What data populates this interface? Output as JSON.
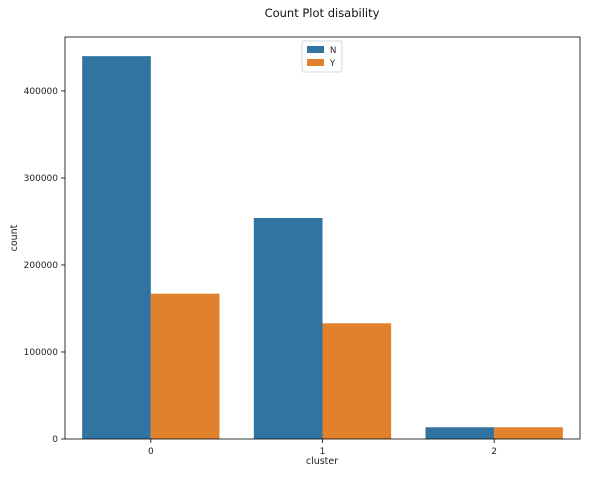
{
  "chart_data": {
    "type": "bar",
    "title": "Count Plot disability",
    "xlabel": "cluster",
    "ylabel": "count",
    "categories": [
      "0",
      "1",
      "2"
    ],
    "series": [
      {
        "name": "N",
        "color": "#3274a1",
        "values": [
          440000,
          254000,
          13500
        ]
      },
      {
        "name": "Y",
        "color": "#e1812c",
        "values": [
          167000,
          133000,
          13500
        ]
      }
    ],
    "ylim": [
      0,
      462000
    ],
    "yticks": [
      0,
      100000,
      200000,
      300000,
      400000
    ],
    "ytick_labels": [
      "0",
      "100000",
      "200000",
      "300000",
      "400000"
    ],
    "legend_position": "top-center",
    "grid": false
  }
}
